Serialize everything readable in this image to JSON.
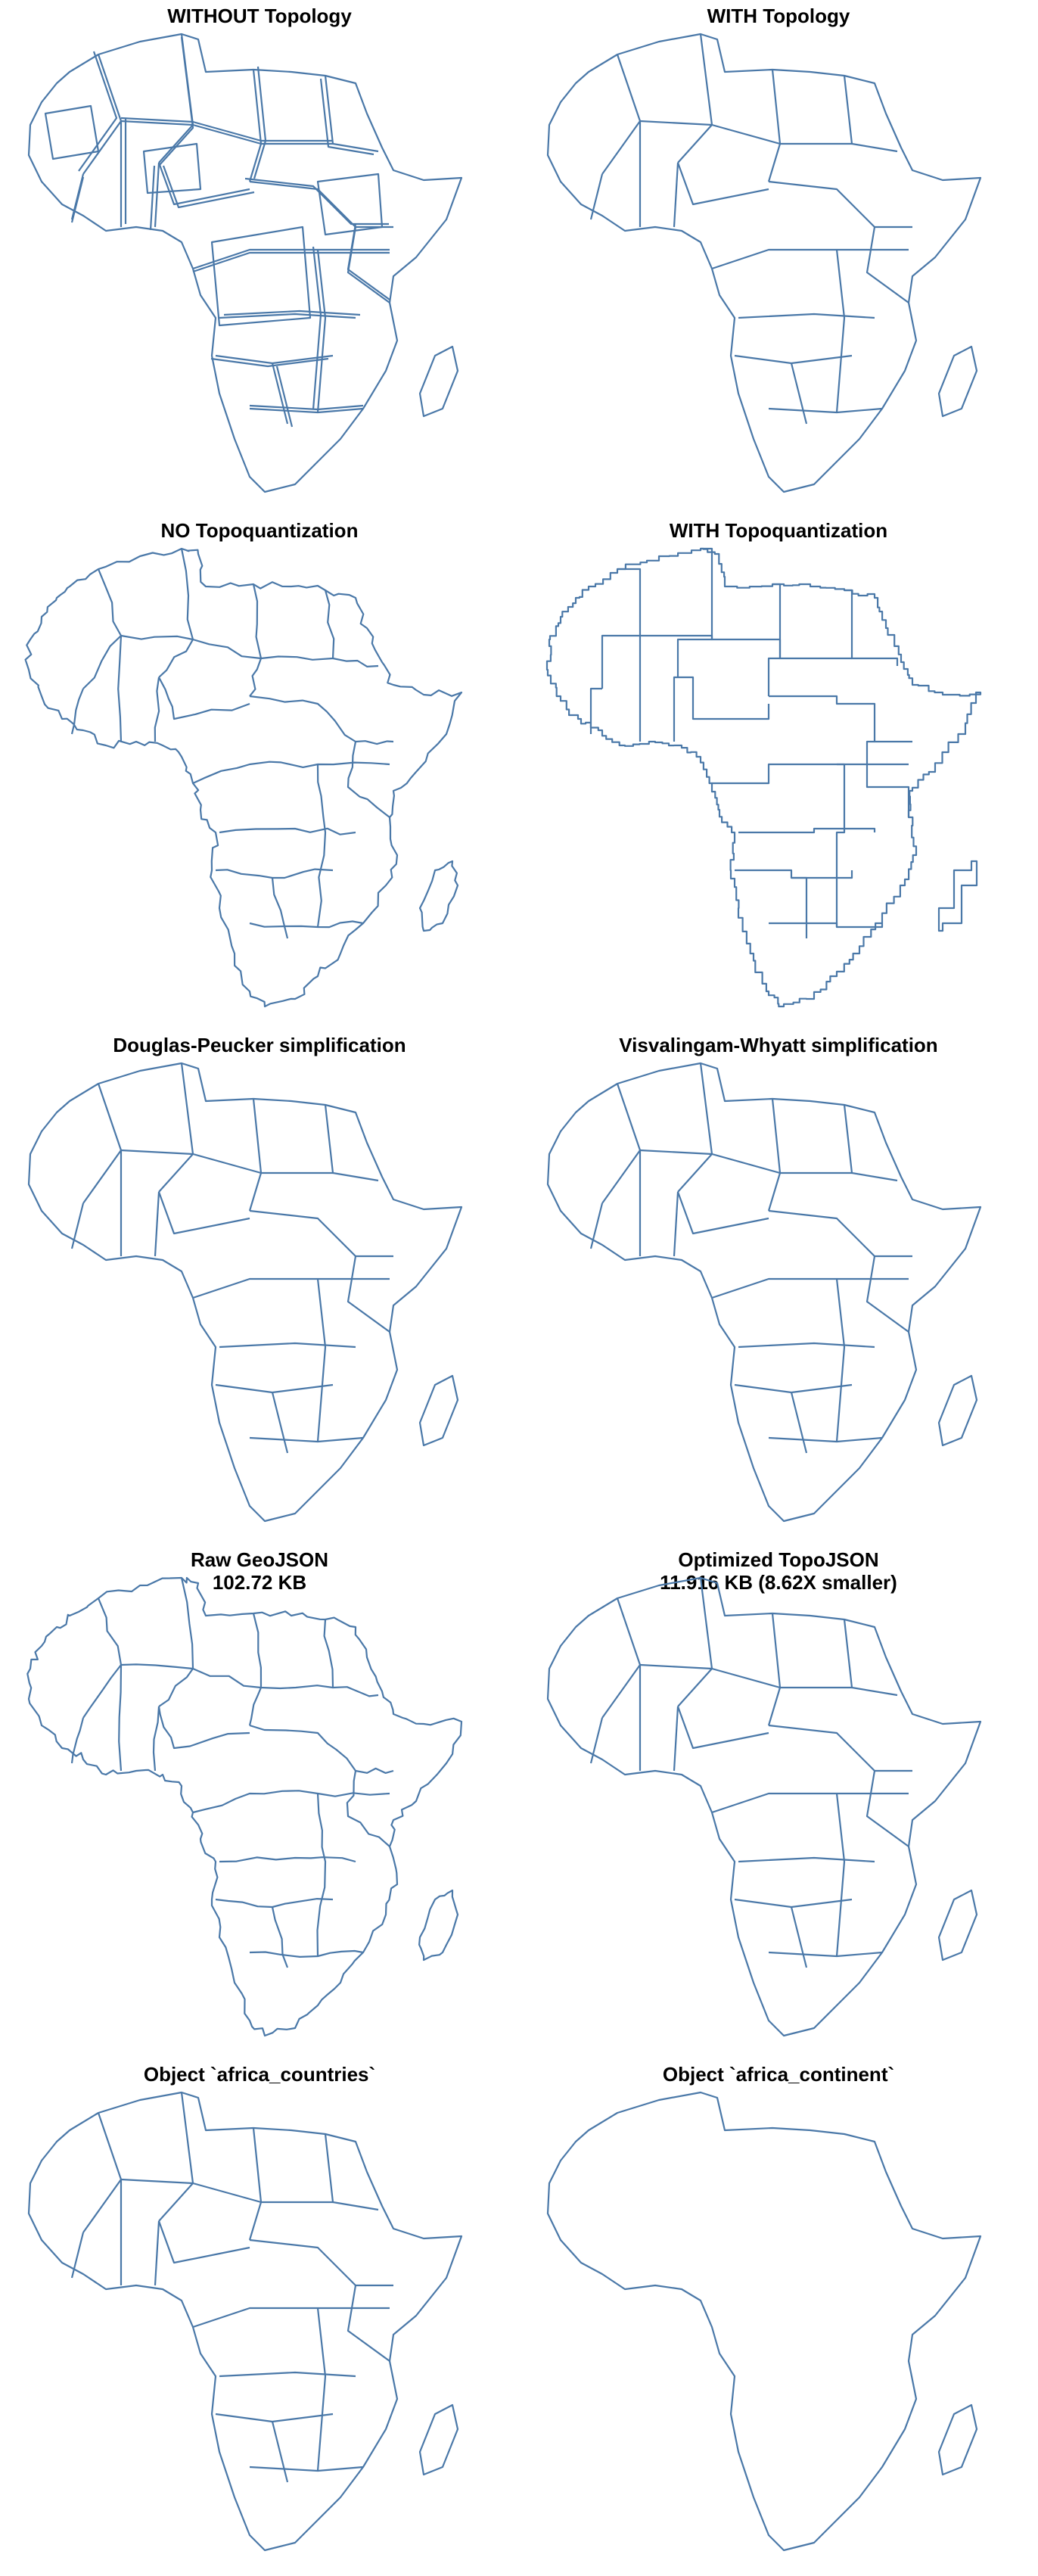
{
  "panels": [
    {
      "title": "WITHOUT Topology",
      "subtitle": "",
      "style": "overlap"
    },
    {
      "title": "WITH Topology",
      "subtitle": "",
      "style": "simple"
    },
    {
      "title": "NO Topoquantization",
      "subtitle": "",
      "style": "detailed"
    },
    {
      "title": "WITH Topoquantization",
      "subtitle": "",
      "style": "stepped"
    },
    {
      "title": "Douglas-Peucker simplification",
      "subtitle": "",
      "style": "simple"
    },
    {
      "title": "Visvalingam-Whyatt simplification",
      "subtitle": "",
      "style": "simple"
    },
    {
      "title": "Raw GeoJSON",
      "subtitle": "102.72 KB",
      "style": "detailed"
    },
    {
      "title": "Optimized TopoJSON",
      "subtitle": "11.916 KB (8.62X smaller)",
      "style": "simple"
    },
    {
      "title": "Object `africa_countries`",
      "subtitle": "",
      "style": "simple"
    },
    {
      "title": "Object `africa_continent`",
      "subtitle": "",
      "style": "outline"
    }
  ],
  "colors": {
    "stroke": "#4a78a8",
    "background": "#ffffff",
    "title": "#000000"
  }
}
